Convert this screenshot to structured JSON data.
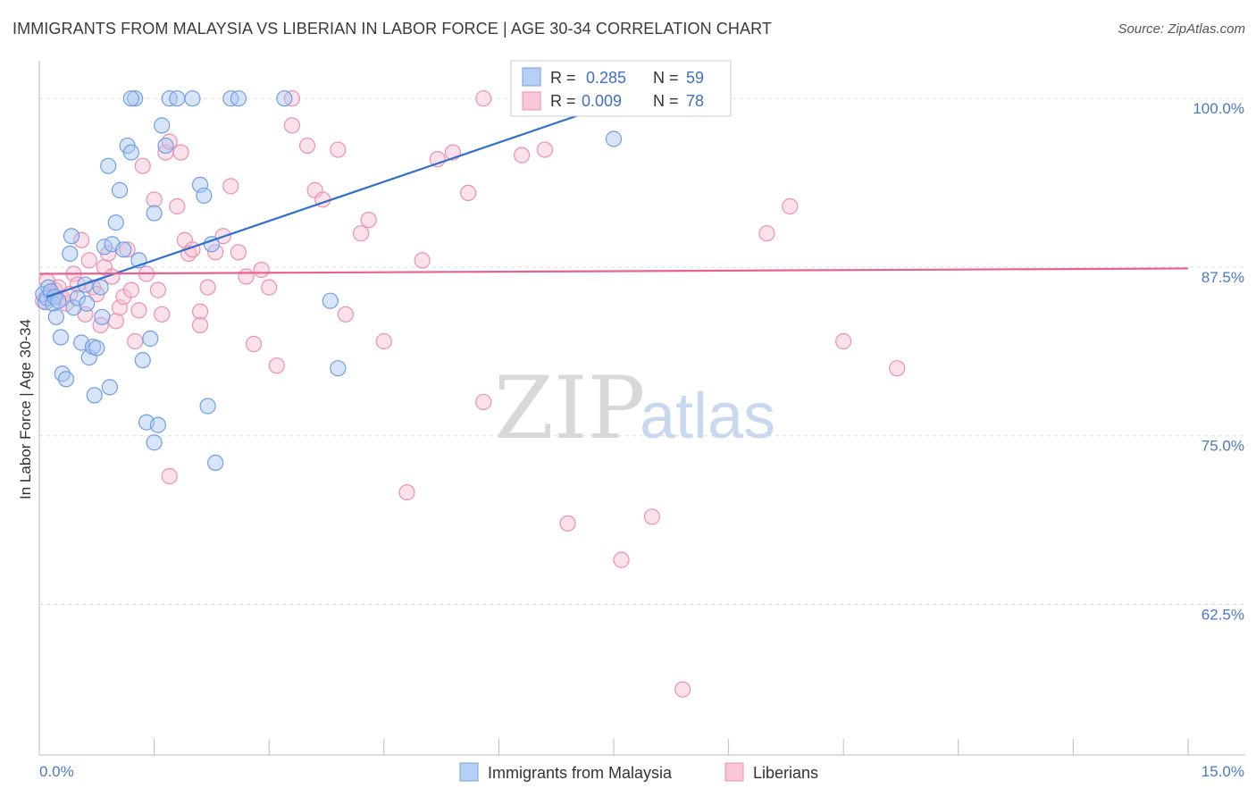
{
  "header": {
    "title": "IMMIGRANTS FROM MALAYSIA VS LIBERIAN IN LABOR FORCE | AGE 30-34 CORRELATION CHART",
    "source": "Source: ZipAtlas.com"
  },
  "colors": {
    "blue": "#6f9fe6",
    "blue_fill": "#a9c6f2",
    "blue_line": "#2f6fd0",
    "pink": "#ee8fb0",
    "pink_fill": "#f6bfd1",
    "pink_line": "#e8628f",
    "tick_text": "#4a78c8"
  },
  "watermark": {
    "zip": "ZIP",
    "atlas": "atlas"
  },
  "legend_box": {
    "r_label": "R =",
    "n_label": "N =",
    "rows": [
      {
        "r": "0.285",
        "n": "59"
      },
      {
        "r": "0.009",
        "n": "78"
      }
    ]
  },
  "bottom_legend": [
    "Immigrants from Malaysia",
    "Liberians"
  ],
  "chart_data": {
    "type": "scatter",
    "title": "IMMIGRANTS FROM MALAYSIA VS LIBERIAN IN LABOR FORCE | AGE 30-34 CORRELATION CHART",
    "xlabel": "",
    "ylabel": "In Labor Force | Age 30-34",
    "xlim": [
      0,
      15
    ],
    "ylim": [
      52,
      102
    ],
    "x_tick_labels": [
      "0.0%",
      "15.0%"
    ],
    "y_ticks": [
      62.5,
      75.0,
      87.5,
      100.0
    ],
    "y_tick_labels": [
      "62.5%",
      "75.0%",
      "87.5%",
      "100.0%"
    ],
    "grid": "dashed horizontal",
    "legend_position": "top-center",
    "series": [
      {
        "name": "Immigrants from Malaysia",
        "r": 0.285,
        "n": 59,
        "trend": {
          "x": [
            0.1,
            8.2
          ],
          "y": [
            85.3,
            101.0
          ]
        },
        "x": [
          0.05,
          0.08,
          0.1,
          0.12,
          0.15,
          0.18,
          0.2,
          0.22,
          0.25,
          0.28,
          0.3,
          0.35,
          0.4,
          0.42,
          0.45,
          0.5,
          0.55,
          0.6,
          0.62,
          0.65,
          0.7,
          0.72,
          0.75,
          0.8,
          0.82,
          0.85,
          0.9,
          0.92,
          0.95,
          1.0,
          1.05,
          1.1,
          1.15,
          1.2,
          1.25,
          1.3,
          1.35,
          1.4,
          1.45,
          1.5,
          1.55,
          1.6,
          1.65,
          1.7,
          1.8,
          2.0,
          2.1,
          2.15,
          2.2,
          2.25,
          2.3,
          2.5,
          2.6,
          3.2,
          3.8,
          3.9,
          1.2,
          1.5,
          7.5
        ],
        "y": [
          85.5,
          84.9,
          85.2,
          86.0,
          85.7,
          84.8,
          85.3,
          83.8,
          85.0,
          82.3,
          79.6,
          79.2,
          88.5,
          89.8,
          84.5,
          85.2,
          81.9,
          86.2,
          84.8,
          80.8,
          81.6,
          78.0,
          81.5,
          86.0,
          83.8,
          89.0,
          95.0,
          78.6,
          89.2,
          90.8,
          93.2,
          88.8,
          96.5,
          96.0,
          100.0,
          88.0,
          80.6,
          76.0,
          82.2,
          91.5,
          75.8,
          98.0,
          96.5,
          100.0,
          100.0,
          100.0,
          93.6,
          92.8,
          77.2,
          89.2,
          73.0,
          100.0,
          100.0,
          100.0,
          85.0,
          80.0,
          100.0,
          74.5,
          97.0
        ]
      },
      {
        "name": "Liberians",
        "r": 0.009,
        "n": 78,
        "trend": {
          "x": [
            0.0,
            15.0
          ],
          "y": [
            87.0,
            87.4
          ]
        },
        "x": [
          0.05,
          0.1,
          0.15,
          0.2,
          0.25,
          0.3,
          0.35,
          0.4,
          0.45,
          0.5,
          0.55,
          0.6,
          0.65,
          0.7,
          0.75,
          0.8,
          0.85,
          0.9,
          0.95,
          1.0,
          1.05,
          1.1,
          1.15,
          1.2,
          1.25,
          1.3,
          1.35,
          1.4,
          1.5,
          1.55,
          1.6,
          1.65,
          1.7,
          1.8,
          1.85,
          1.9,
          1.95,
          2.0,
          2.1,
          2.2,
          2.3,
          2.4,
          2.5,
          2.6,
          2.7,
          2.8,
          2.9,
          3.0,
          3.1,
          3.3,
          3.5,
          3.6,
          3.7,
          3.9,
          4.0,
          4.2,
          4.3,
          4.5,
          4.8,
          5.0,
          5.2,
          5.4,
          5.6,
          5.8,
          6.3,
          6.6,
          6.9,
          7.6,
          8.0,
          8.4,
          9.5,
          10.5,
          11.2,
          1.7,
          2.1,
          3.3,
          5.8,
          9.8
        ],
        "y": [
          85.0,
          86.5,
          85.5,
          85.8,
          86.0,
          85.2,
          84.8,
          85.5,
          87.0,
          86.2,
          89.5,
          84.0,
          88.0,
          86.0,
          85.5,
          83.2,
          87.5,
          88.5,
          86.8,
          83.5,
          84.5,
          85.3,
          88.8,
          85.8,
          82.0,
          84.3,
          95.0,
          87.0,
          92.5,
          85.8,
          84.0,
          96.0,
          96.8,
          92.0,
          96.0,
          89.5,
          88.5,
          88.8,
          84.2,
          86.0,
          88.6,
          89.8,
          93.5,
          88.6,
          86.8,
          81.8,
          87.3,
          86.0,
          80.2,
          98.0,
          96.5,
          93.2,
          92.5,
          96.2,
          84.0,
          90.0,
          91.0,
          82.0,
          70.8,
          88.0,
          95.5,
          96.0,
          93.0,
          100.0,
          95.8,
          96.2,
          68.5,
          65.8,
          69.0,
          56.2,
          90.0,
          82.0,
          80.0,
          72.0,
          83.2,
          100.0,
          77.5,
          92.0
        ]
      }
    ]
  }
}
